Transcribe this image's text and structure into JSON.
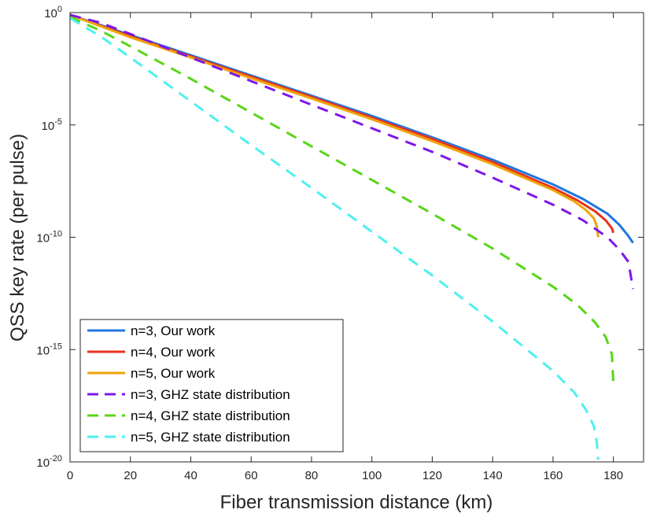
{
  "chart_data": {
    "type": "line",
    "title": "",
    "xlabel": "Fiber transmission distance (km)",
    "ylabel": "QSS key rate (per pulse)",
    "xlim": [
      0,
      190
    ],
    "ylim_exponent": [
      -20,
      0
    ],
    "yscale": "log",
    "grid": false,
    "legend_position": "bottom-left",
    "x_ticks": [
      "0",
      "20",
      "40",
      "60",
      "80",
      "100",
      "120",
      "140",
      "160",
      "180"
    ],
    "y_ticks": [
      {
        "base": "10",
        "exp": "0"
      },
      {
        "base": "10",
        "exp": "-5"
      },
      {
        "base": "10",
        "exp": "-10"
      },
      {
        "base": "10",
        "exp": "-15"
      },
      {
        "base": "10",
        "exp": "-20"
      }
    ],
    "series": [
      {
        "name": "n=3, Our work",
        "color": "#1f77e0",
        "style": "solid",
        "x": [
          0,
          20,
          40,
          60,
          80,
          100,
          120,
          140,
          160,
          170,
          178,
          182,
          185,
          186.5
        ],
        "log10_y": [
          -0.1,
          -1.0,
          -1.9,
          -2.8,
          -3.7,
          -4.6,
          -5.55,
          -6.55,
          -7.65,
          -8.3,
          -8.95,
          -9.45,
          -9.95,
          -10.25
        ]
      },
      {
        "name": "n=4, Our work",
        "color": "#e8321e",
        "style": "solid",
        "x": [
          0,
          20,
          40,
          60,
          80,
          100,
          120,
          140,
          160,
          168,
          174,
          177.5,
          179.5,
          180
        ],
        "log10_y": [
          -0.1,
          -1.05,
          -1.95,
          -2.85,
          -3.75,
          -4.68,
          -5.62,
          -6.65,
          -7.8,
          -8.35,
          -8.85,
          -9.25,
          -9.6,
          -9.8
        ]
      },
      {
        "name": "n=5, Our work",
        "color": "#f0a30a",
        "style": "solid",
        "x": [
          0,
          20,
          40,
          60,
          80,
          100,
          120,
          140,
          160,
          167,
          171,
          173.5,
          174.5,
          175
        ],
        "log10_y": [
          -0.1,
          -1.1,
          -2.0,
          -2.92,
          -3.82,
          -4.75,
          -5.72,
          -6.75,
          -7.9,
          -8.4,
          -8.8,
          -9.15,
          -9.5,
          -10.0
        ]
      },
      {
        "name": "n=3, GHZ state distribution",
        "color": "#7e17e8",
        "style": "dashed",
        "x": [
          0,
          10,
          20,
          40,
          60,
          80,
          100,
          120,
          140,
          160,
          170,
          178,
          182,
          185,
          186.5
        ],
        "log10_y": [
          -0.1,
          -0.45,
          -0.95,
          -2.0,
          -3.05,
          -4.1,
          -5.15,
          -6.2,
          -7.35,
          -8.55,
          -9.25,
          -10.0,
          -10.55,
          -11.1,
          -12.3
        ]
      },
      {
        "name": "n=4, GHZ state distribution",
        "color": "#58d618",
        "style": "dashed",
        "x": [
          0,
          10,
          20,
          40,
          60,
          80,
          100,
          120,
          140,
          160,
          168,
          174,
          177.5,
          179.5,
          180
        ],
        "log10_y": [
          -0.2,
          -0.8,
          -1.5,
          -2.95,
          -4.45,
          -5.95,
          -7.45,
          -8.95,
          -10.5,
          -12.2,
          -13.0,
          -13.8,
          -14.45,
          -15.2,
          -16.5
        ]
      },
      {
        "name": "n=5, GHZ state distribution",
        "color": "#4ff0ee",
        "style": "dashed",
        "x": [
          0,
          10,
          20,
          40,
          60,
          80,
          100,
          120,
          140,
          160,
          167,
          171,
          173.5,
          174.5,
          175
        ],
        "log10_y": [
          -0.25,
          -1.05,
          -2.0,
          -3.95,
          -5.9,
          -7.8,
          -9.75,
          -11.7,
          -13.75,
          -15.95,
          -16.9,
          -17.7,
          -18.4,
          -19.1,
          -19.9
        ]
      }
    ]
  }
}
